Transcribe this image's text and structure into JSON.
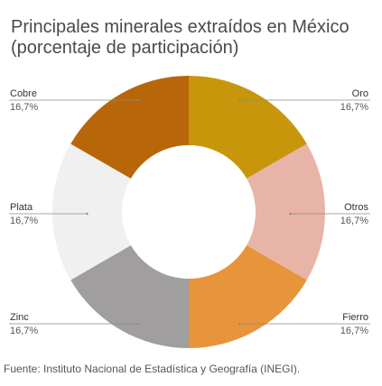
{
  "title_line1": "Principales minerales extraídos en México",
  "title_line2": "(porcentaje de participación)",
  "footer": "Fuente: Instituto Nacional de Estadística y Geografía (INEGI).",
  "chart_data": {
    "type": "pie",
    "title": "Principales minerales extraídos en México (porcentaje de participación)",
    "donut": true,
    "slices": [
      {
        "label": "Oro",
        "value_label": "16,7%",
        "value": 16.7,
        "color": "#c8960a"
      },
      {
        "label": "Otros",
        "value_label": "16,7%",
        "value": 16.7,
        "color": "#e8b4a8"
      },
      {
        "label": "Fierro",
        "value_label": "16,7%",
        "value": 16.7,
        "color": "#e8943a"
      },
      {
        "label": "Zinc",
        "value_label": "16,7%",
        "value": 16.7,
        "color": "#a09e9e"
      },
      {
        "label": "Plata",
        "value_label": "16,7%",
        "value": 16.7,
        "color": "#f0f0f0"
      },
      {
        "label": "Cobre",
        "value_label": "16,7%",
        "value": 16.7,
        "color": "#b8660a"
      }
    ]
  }
}
